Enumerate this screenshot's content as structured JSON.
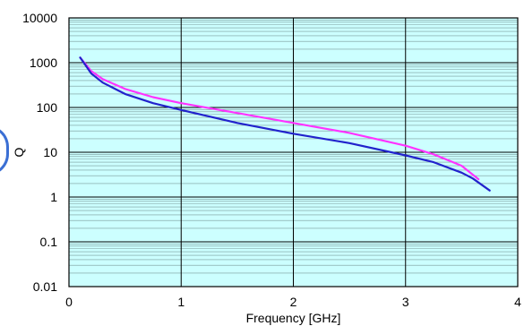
{
  "chart_data": {
    "type": "line",
    "title": "",
    "xlabel": "Frequency [GHz]",
    "ylabel": "Q",
    "xlim": [
      0,
      4
    ],
    "ylim": [
      0.01,
      10000
    ],
    "yscale": "log",
    "grid": true,
    "legend": "none",
    "x_ticks": [
      "0",
      "1",
      "2",
      "3",
      "4"
    ],
    "y_ticks": [
      "0.01",
      "0.1",
      "1",
      "10",
      "100",
      "1000",
      "10000"
    ],
    "plot_background": "#ccffff",
    "series": [
      {
        "color": "#ff33ff",
        "x": [
          0.1,
          0.2,
          0.3,
          0.5,
          0.75,
          1.0,
          1.5,
          2.0,
          2.5,
          3.0,
          3.25,
          3.5,
          3.65
        ],
        "values": [
          1300,
          650,
          430,
          260,
          170,
          125,
          75,
          45,
          27,
          14,
          9,
          5,
          2.5
        ]
      },
      {
        "color": "#2222cc",
        "x": [
          0.1,
          0.2,
          0.3,
          0.5,
          0.75,
          1.0,
          1.5,
          2.0,
          2.5,
          3.0,
          3.25,
          3.5,
          3.6,
          3.75
        ],
        "values": [
          1300,
          570,
          360,
          200,
          125,
          88,
          45,
          26,
          16,
          8.5,
          6,
          3.5,
          2.6,
          1.4
        ]
      }
    ]
  }
}
